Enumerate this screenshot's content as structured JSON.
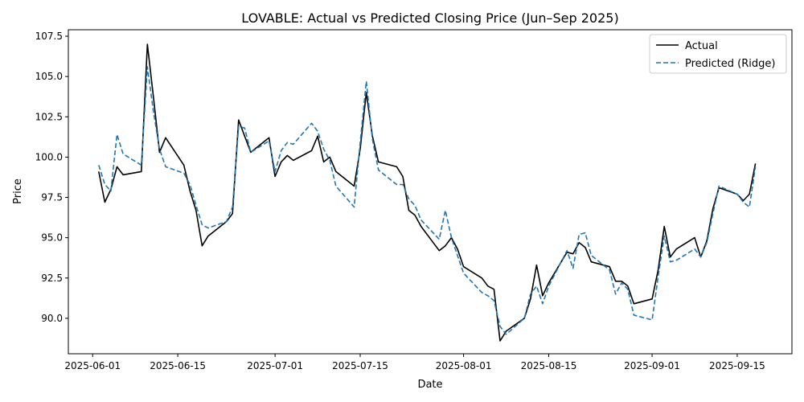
{
  "chart_data": {
    "type": "line",
    "title": "LOVABLE: Actual vs Predicted Closing Price (Jun–Sep 2025)",
    "xlabel": "Date",
    "ylabel": "Price",
    "xlim": [
      "2025-05-28",
      "2025-09-24"
    ],
    "ylim": [
      87.8,
      107.9
    ],
    "x_ticks": [
      {
        "date": "2025-06-01",
        "label": "2025-06-01"
      },
      {
        "date": "2025-06-15",
        "label": "2025-06-15"
      },
      {
        "date": "2025-07-01",
        "label": "2025-07-01"
      },
      {
        "date": "2025-07-15",
        "label": "2025-07-15"
      },
      {
        "date": "2025-08-01",
        "label": "2025-08-01"
      },
      {
        "date": "2025-08-15",
        "label": "2025-08-15"
      },
      {
        "date": "2025-09-01",
        "label": "2025-09-01"
      },
      {
        "date": "2025-09-15",
        "label": "2025-09-15"
      }
    ],
    "y_ticks": [
      {
        "value": 90.0,
        "label": "90.0"
      },
      {
        "value": 92.5,
        "label": "92.5"
      },
      {
        "value": 95.0,
        "label": "95.0"
      },
      {
        "value": 97.5,
        "label": "97.5"
      },
      {
        "value": 100.0,
        "label": "100.0"
      },
      {
        "value": 102.5,
        "label": "102.5"
      },
      {
        "value": 105.0,
        "label": "105.0"
      },
      {
        "value": 107.5,
        "label": "107.5"
      }
    ],
    "legend_position": "top-right",
    "grid": false,
    "series": [
      {
        "name": "Actual",
        "color": "#000000",
        "style": "solid",
        "points": [
          [
            "2025-06-02",
            99.1
          ],
          [
            "2025-06-03",
            97.2
          ],
          [
            "2025-06-04",
            98.0
          ],
          [
            "2025-06-05",
            99.4
          ],
          [
            "2025-06-06",
            98.9
          ],
          [
            "2025-06-09",
            99.1
          ],
          [
            "2025-06-10",
            107.0
          ],
          [
            "2025-06-11",
            103.7
          ],
          [
            "2025-06-12",
            100.3
          ],
          [
            "2025-06-13",
            101.2
          ],
          [
            "2025-06-16",
            99.5
          ],
          [
            "2025-06-17",
            97.9
          ],
          [
            "2025-06-18",
            96.7
          ],
          [
            "2025-06-19",
            94.5
          ],
          [
            "2025-06-20",
            95.1
          ],
          [
            "2025-06-23",
            96.0
          ],
          [
            "2025-06-24",
            96.5
          ],
          [
            "2025-06-25",
            102.3
          ],
          [
            "2025-06-26",
            101.3
          ],
          [
            "2025-06-27",
            100.3
          ],
          [
            "2025-06-30",
            101.2
          ],
          [
            "2025-07-01",
            98.8
          ],
          [
            "2025-07-02",
            99.7
          ],
          [
            "2025-07-03",
            100.1
          ],
          [
            "2025-07-04",
            99.8
          ],
          [
            "2025-07-07",
            100.4
          ],
          [
            "2025-07-08",
            101.3
          ],
          [
            "2025-07-09",
            99.7
          ],
          [
            "2025-07-10",
            100.0
          ],
          [
            "2025-07-11",
            99.1
          ],
          [
            "2025-07-14",
            98.2
          ],
          [
            "2025-07-15",
            100.5
          ],
          [
            "2025-07-16",
            104.0
          ],
          [
            "2025-07-17",
            101.3
          ],
          [
            "2025-07-18",
            99.7
          ],
          [
            "2025-07-21",
            99.4
          ],
          [
            "2025-07-22",
            98.8
          ],
          [
            "2025-07-23",
            96.7
          ],
          [
            "2025-07-24",
            96.4
          ],
          [
            "2025-07-25",
            95.7
          ],
          [
            "2025-07-28",
            94.2
          ],
          [
            "2025-07-29",
            94.5
          ],
          [
            "2025-07-30",
            95.0
          ],
          [
            "2025-07-31",
            94.3
          ],
          [
            "2025-08-01",
            93.2
          ],
          [
            "2025-08-04",
            92.5
          ],
          [
            "2025-08-05",
            92.0
          ],
          [
            "2025-08-06",
            91.8
          ],
          [
            "2025-08-07",
            88.6
          ],
          [
            "2025-08-08",
            89.2
          ],
          [
            "2025-08-11",
            90.0
          ],
          [
            "2025-08-12",
            91.2
          ],
          [
            "2025-08-13",
            93.3
          ],
          [
            "2025-08-14",
            91.4
          ],
          [
            "2025-08-15",
            92.2
          ],
          [
            "2025-08-18",
            94.1
          ],
          [
            "2025-08-19",
            94.0
          ],
          [
            "2025-08-20",
            94.7
          ],
          [
            "2025-08-21",
            94.4
          ],
          [
            "2025-08-22",
            93.5
          ],
          [
            "2025-08-25",
            93.2
          ],
          [
            "2025-08-26",
            92.3
          ],
          [
            "2025-08-27",
            92.3
          ],
          [
            "2025-08-28",
            92.0
          ],
          [
            "2025-08-29",
            90.9
          ],
          [
            "2025-09-01",
            91.2
          ],
          [
            "2025-09-02",
            93.0
          ],
          [
            "2025-09-03",
            95.7
          ],
          [
            "2025-09-04",
            93.8
          ],
          [
            "2025-09-05",
            94.3
          ],
          [
            "2025-09-08",
            95.0
          ],
          [
            "2025-09-09",
            93.8
          ],
          [
            "2025-09-10",
            94.8
          ],
          [
            "2025-09-11",
            96.8
          ],
          [
            "2025-09-12",
            98.1
          ],
          [
            "2025-09-15",
            97.7
          ],
          [
            "2025-09-16",
            97.3
          ],
          [
            "2025-09-17",
            97.7
          ],
          [
            "2025-09-18",
            99.6
          ]
        ]
      },
      {
        "name": "Predicted (Ridge)",
        "color": "#1f77b4",
        "style": "dashed",
        "points": [
          [
            "2025-06-02",
            99.5
          ],
          [
            "2025-06-03",
            98.3
          ],
          [
            "2025-06-04",
            97.9
          ],
          [
            "2025-06-05",
            101.4
          ],
          [
            "2025-06-06",
            100.2
          ],
          [
            "2025-06-09",
            99.5
          ],
          [
            "2025-06-10",
            105.6
          ],
          [
            "2025-06-11",
            102.8
          ],
          [
            "2025-06-12",
            100.5
          ],
          [
            "2025-06-13",
            99.4
          ],
          [
            "2025-06-16",
            99.0
          ],
          [
            "2025-06-17",
            98.3
          ],
          [
            "2025-06-18",
            97.0
          ],
          [
            "2025-06-19",
            95.8
          ],
          [
            "2025-06-20",
            95.6
          ],
          [
            "2025-06-23",
            96.0
          ],
          [
            "2025-06-24",
            96.9
          ],
          [
            "2025-06-25",
            101.9
          ],
          [
            "2025-06-26",
            101.8
          ],
          [
            "2025-06-27",
            100.3
          ],
          [
            "2025-06-30",
            101.0
          ],
          [
            "2025-07-01",
            99.1
          ],
          [
            "2025-07-02",
            100.4
          ],
          [
            "2025-07-03",
            100.9
          ],
          [
            "2025-07-04",
            100.8
          ],
          [
            "2025-07-07",
            102.1
          ],
          [
            "2025-07-08",
            101.6
          ],
          [
            "2025-07-09",
            100.5
          ],
          [
            "2025-07-10",
            99.8
          ],
          [
            "2025-07-11",
            98.2
          ],
          [
            "2025-07-14",
            96.9
          ],
          [
            "2025-07-15",
            100.9
          ],
          [
            "2025-07-16",
            104.7
          ],
          [
            "2025-07-17",
            101.1
          ],
          [
            "2025-07-18",
            99.2
          ],
          [
            "2025-07-21",
            98.3
          ],
          [
            "2025-07-22",
            98.3
          ],
          [
            "2025-07-23",
            97.4
          ],
          [
            "2025-07-24",
            97.0
          ],
          [
            "2025-07-25",
            96.1
          ],
          [
            "2025-07-28",
            94.9
          ],
          [
            "2025-07-29",
            96.7
          ],
          [
            "2025-07-30",
            95.0
          ],
          [
            "2025-07-31",
            93.9
          ],
          [
            "2025-08-01",
            92.8
          ],
          [
            "2025-08-04",
            91.6
          ],
          [
            "2025-08-05",
            91.4
          ],
          [
            "2025-08-06",
            91.1
          ],
          [
            "2025-08-07",
            89.5
          ],
          [
            "2025-08-08",
            89.0
          ],
          [
            "2025-08-11",
            90.0
          ],
          [
            "2025-08-12",
            91.5
          ],
          [
            "2025-08-13",
            92.0
          ],
          [
            "2025-08-14",
            90.9
          ],
          [
            "2025-08-15",
            92.0
          ],
          [
            "2025-08-18",
            94.2
          ],
          [
            "2025-08-19",
            93.1
          ],
          [
            "2025-08-20",
            95.2
          ],
          [
            "2025-08-21",
            95.3
          ],
          [
            "2025-08-22",
            93.9
          ],
          [
            "2025-08-25",
            93.0
          ],
          [
            "2025-08-26",
            91.5
          ],
          [
            "2025-08-27",
            92.2
          ],
          [
            "2025-08-28",
            91.8
          ],
          [
            "2025-08-29",
            90.2
          ],
          [
            "2025-09-01",
            89.9
          ],
          [
            "2025-09-02",
            92.6
          ],
          [
            "2025-09-03",
            95.1
          ],
          [
            "2025-09-04",
            93.5
          ],
          [
            "2025-09-05",
            93.6
          ],
          [
            "2025-09-08",
            94.3
          ],
          [
            "2025-09-09",
            93.8
          ],
          [
            "2025-09-10",
            94.7
          ],
          [
            "2025-09-11",
            96.5
          ],
          [
            "2025-09-12",
            98.2
          ],
          [
            "2025-09-15",
            97.7
          ],
          [
            "2025-09-16",
            97.2
          ],
          [
            "2025-09-17",
            96.9
          ],
          [
            "2025-09-18",
            99.4
          ]
        ]
      }
    ]
  }
}
